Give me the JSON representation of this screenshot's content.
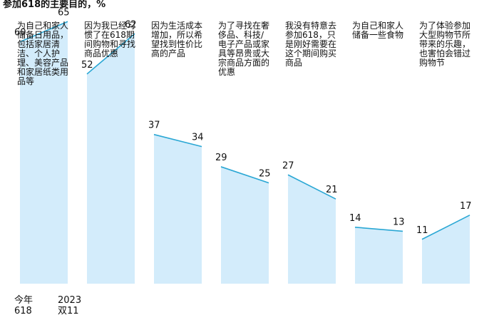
{
  "chart_data": {
    "type": "slope-area",
    "title": "参加618的主要目的，%",
    "categories": [
      "为自己和家人储备日用品，包括家居清洁、个人护理、美容产品和家居纸类用品等",
      "因为我已经习惯了在618期间购物和寻找商品优惠",
      "因为生活成本增加，所以希望找到性价比高的产品",
      "为了寻找在奢侈品、科技/电子产品或家具等昂贵或大宗商品方面的优惠",
      "我没有特意去参加618，只是刚好需要在这个期间购买商品",
      "为自己和家人储备一些食物",
      "为了体验参加大型购物节所带来的乐趣，也害怕会错过购物节"
    ],
    "x_labels": [
      [
        "今年",
        "618"
      ],
      [
        "2023",
        "双11"
      ]
    ],
    "series": [
      {
        "values": [
          60,
          52,
          37,
          29,
          27,
          14,
          11
        ]
      },
      {
        "values": [
          65,
          62,
          34,
          25,
          21,
          13,
          17
        ]
      }
    ],
    "fill_color": "#d3ecfb",
    "line_color": "#2aa7d4",
    "ylim": [
      0,
      70
    ]
  }
}
